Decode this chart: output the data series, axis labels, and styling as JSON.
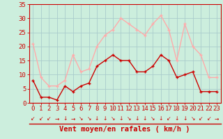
{
  "hours": [
    0,
    1,
    2,
    3,
    4,
    5,
    6,
    7,
    8,
    9,
    10,
    11,
    12,
    13,
    14,
    15,
    16,
    17,
    18,
    19,
    20,
    21,
    22,
    23
  ],
  "wind_avg": [
    8,
    2,
    2,
    1,
    6,
    4,
    6,
    7,
    13,
    15,
    17,
    15,
    15,
    11,
    11,
    13,
    17,
    15,
    9,
    10,
    11,
    4,
    4,
    4
  ],
  "wind_gust": [
    21,
    9,
    6,
    6,
    8,
    17,
    11,
    12,
    20,
    24,
    26,
    30,
    28,
    26,
    24,
    28,
    31,
    26,
    15,
    28,
    20,
    17,
    9,
    9
  ],
  "avg_color": "#cc0000",
  "gust_color": "#ffaaaa",
  "bg_color": "#cceedd",
  "grid_color": "#aacccc",
  "ylim": [
    0,
    35
  ],
  "yticks": [
    0,
    5,
    10,
    15,
    20,
    25,
    30,
    35
  ],
  "xlabel": "Vent moyen/en rafales ( km/h )",
  "tick_fontsize": 6.5,
  "xlabel_fontsize": 7.5,
  "arrow_symbols": [
    "↙",
    "↙",
    "↙",
    "→",
    "↓",
    "→",
    "↘",
    "↘",
    "↓",
    "↓",
    "↘",
    "↓",
    "↘",
    "↓",
    "↓",
    "↘",
    "↓",
    "↙",
    "↓",
    "↓",
    "↘",
    "↙",
    "↙",
    "→"
  ]
}
